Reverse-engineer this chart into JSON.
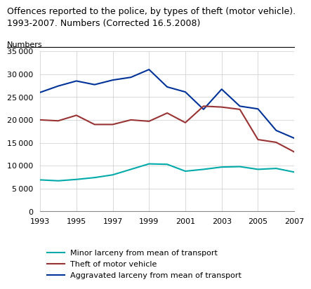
{
  "title_line1": "Offences reported to the police, by types of theft (motor vehicle).",
  "title_line2": "1993-2007. Numbers (Corrected 16.5.2008)",
  "ylabel": "Numbers",
  "years": [
    1993,
    1994,
    1995,
    1996,
    1997,
    1998,
    1999,
    2000,
    2001,
    2002,
    2003,
    2004,
    2005,
    2006,
    2007
  ],
  "minor_larceny": [
    6900,
    6700,
    7000,
    7400,
    8000,
    9200,
    10400,
    10300,
    8800,
    9200,
    9700,
    9800,
    9200,
    9400,
    8600
  ],
  "theft_motor": [
    20000,
    19800,
    21000,
    19000,
    19000,
    20000,
    19700,
    21500,
    19400,
    23000,
    22800,
    22300,
    15700,
    15100,
    13000
  ],
  "aggravated_larceny": [
    26000,
    27400,
    28500,
    27700,
    28700,
    29300,
    31000,
    27200,
    26100,
    22300,
    26700,
    23000,
    22400,
    17700,
    16000
  ],
  "minor_color": "#00AAAA",
  "theft_color": "#993333",
  "aggravated_color": "#003399",
  "ylim": [
    0,
    35000
  ],
  "yticks": [
    0,
    5000,
    10000,
    15000,
    20000,
    25000,
    30000,
    35000
  ],
  "xticks": [
    1993,
    1995,
    1997,
    1999,
    2001,
    2003,
    2005,
    2007
  ],
  "legend_labels": [
    "Minor larceny from mean of transport",
    "Theft of motor vehicle",
    "Aggravated larceny from mean of transport"
  ],
  "title_fontsize": 9,
  "label_fontsize": 8,
  "tick_fontsize": 8,
  "legend_fontsize": 8
}
